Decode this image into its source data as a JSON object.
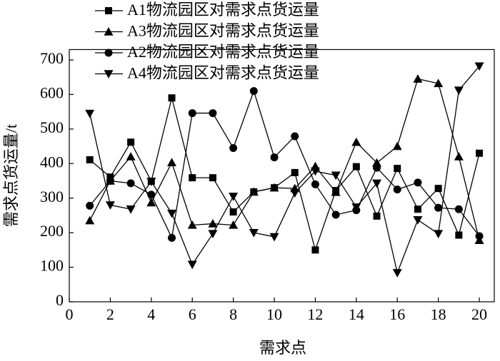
{
  "chart_data": {
    "type": "line",
    "x_label": "需求点",
    "y_label": "需求点货运量/t",
    "x": [
      1,
      2,
      3,
      4,
      5,
      6,
      7,
      8,
      9,
      10,
      11,
      12,
      13,
      14,
      15,
      16,
      17,
      18,
      19,
      20
    ],
    "xlim": [
      0,
      20.73
    ],
    "xticks": [
      0,
      2,
      4,
      6,
      8,
      10,
      12,
      14,
      16,
      18,
      20
    ],
    "ylim": [
      0,
      730
    ],
    "yticks": [
      0,
      100,
      200,
      300,
      400,
      500,
      600,
      700
    ],
    "series": [
      {
        "name": "A1物流园区对需求点货运量",
        "color": "#000000",
        "marker": "square",
        "values": [
          411,
          361,
          462,
          349,
          590,
          359,
          359,
          260,
          318,
          330,
          374,
          150,
          322,
          391,
          248,
          386,
          268,
          328,
          193,
          430
        ]
      },
      {
        "name": "A3物流园区对需求点货运量",
        "color": "#000000",
        "marker": "triangle-up",
        "values": [
          235,
          350,
          420,
          287,
          403,
          222,
          226,
          222,
          318,
          330,
          328,
          392,
          317,
          462,
          402,
          450,
          645,
          632,
          420,
          178
        ]
      },
      {
        "name": "A2物流园区对需求点货运量",
        "color": "#000000",
        "marker": "circle",
        "values": [
          278,
          350,
          343,
          310,
          185,
          546,
          546,
          445,
          610,
          418,
          479,
          340,
          252,
          265,
          388,
          325,
          345,
          272,
          268,
          190
        ]
      },
      {
        "name": "A4物流园区对需求点货运量",
        "color": "#000000",
        "marker": "triangle-down",
        "values": [
          545,
          280,
          268,
          348,
          256,
          108,
          197,
          305,
          200,
          188,
          315,
          378,
          366,
          274,
          343,
          84,
          237,
          197,
          612,
          682
        ]
      }
    ]
  }
}
